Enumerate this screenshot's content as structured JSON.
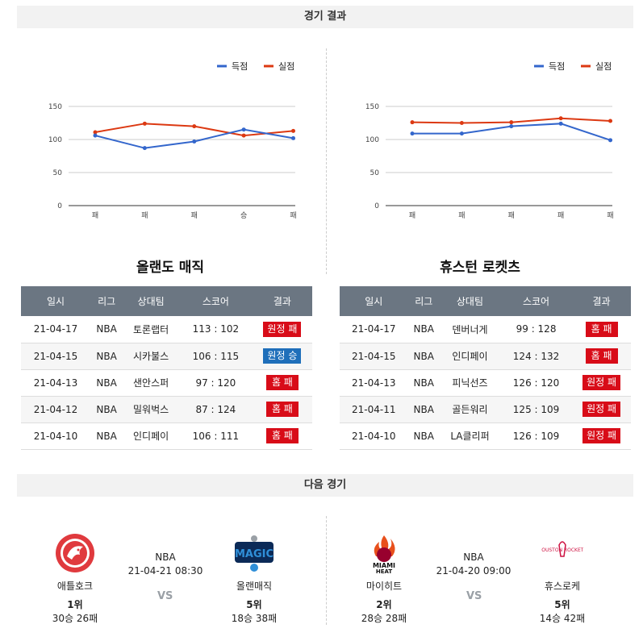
{
  "sections": {
    "results_title": "경기 결과",
    "next_title": "다음 경기"
  },
  "charts": [
    {
      "legend": {
        "scored": "득점",
        "conceded": "실점"
      },
      "colors": {
        "scored": "#3366cc",
        "conceded": "#dc3912"
      },
      "yticks": [
        "150",
        "100",
        "50",
        "0"
      ],
      "categories": [
        "패",
        "패",
        "패",
        "승",
        "패"
      ],
      "scored": [
        106,
        87,
        97,
        115,
        102
      ],
      "conceded": [
        111,
        124,
        120,
        106,
        113
      ]
    },
    {
      "legend": {
        "scored": "득점",
        "conceded": "실점"
      },
      "colors": {
        "scored": "#3366cc",
        "conceded": "#dc3912"
      },
      "yticks": [
        "150",
        "100",
        "50",
        "0"
      ],
      "categories": [
        "패",
        "패",
        "패",
        "패",
        "패"
      ],
      "scored": [
        109,
        109,
        120,
        124,
        99
      ],
      "conceded": [
        126,
        125,
        126,
        132,
        128
      ]
    }
  ],
  "chart_data": [
    {
      "type": "line",
      "categories": [
        "패",
        "패",
        "패",
        "승",
        "패"
      ],
      "ylim": [
        0,
        150
      ],
      "series": [
        {
          "name": "득점",
          "values": [
            106,
            87,
            97,
            115,
            102
          ]
        },
        {
          "name": "실점",
          "values": [
            111,
            124,
            120,
            106,
            113
          ]
        }
      ]
    },
    {
      "type": "line",
      "categories": [
        "패",
        "패",
        "패",
        "패",
        "패"
      ],
      "ylim": [
        0,
        150
      ],
      "series": [
        {
          "name": "득점",
          "values": [
            109,
            109,
            120,
            124,
            99
          ]
        },
        {
          "name": "실점",
          "values": [
            126,
            125,
            126,
            132,
            128
          ]
        }
      ]
    }
  ],
  "teams": {
    "left": {
      "name": "올랜도 매직"
    },
    "right": {
      "name": "휴스턴 로켓츠"
    }
  },
  "table_headers": [
    "일시",
    "리그",
    "상대팀",
    "스코어",
    "결과"
  ],
  "left_table": [
    {
      "date": "21-04-17",
      "league": "NBA",
      "opp": "토론랩터",
      "score": "113 : 102",
      "result": "원정 패",
      "kind": "loss"
    },
    {
      "date": "21-04-15",
      "league": "NBA",
      "opp": "시카불스",
      "score": "106 : 115",
      "result": "원정 승",
      "kind": "win"
    },
    {
      "date": "21-04-13",
      "league": "NBA",
      "opp": "샌안스퍼",
      "score": "97 : 120",
      "result": "홈 패",
      "kind": "loss"
    },
    {
      "date": "21-04-12",
      "league": "NBA",
      "opp": "밀워벅스",
      "score": "87 : 124",
      "result": "홈 패",
      "kind": "loss"
    },
    {
      "date": "21-04-10",
      "league": "NBA",
      "opp": "인디페이",
      "score": "106 : 111",
      "result": "홈 패",
      "kind": "loss"
    }
  ],
  "right_table": [
    {
      "date": "21-04-17",
      "league": "NBA",
      "opp": "덴버너게",
      "score": "99 : 128",
      "result": "홈 패",
      "kind": "loss"
    },
    {
      "date": "21-04-15",
      "league": "NBA",
      "opp": "인디페이",
      "score": "124 : 132",
      "result": "홈 패",
      "kind": "loss"
    },
    {
      "date": "21-04-13",
      "league": "NBA",
      "opp": "피닉선즈",
      "score": "126 : 120",
      "result": "원정 패",
      "kind": "loss"
    },
    {
      "date": "21-04-11",
      "league": "NBA",
      "opp": "골든워리",
      "score": "125 : 109",
      "result": "원정 패",
      "kind": "loss"
    },
    {
      "date": "21-04-10",
      "league": "NBA",
      "opp": "LA클리퍼",
      "score": "126 : 109",
      "result": "원정 패",
      "kind": "loss"
    }
  ],
  "next_games": [
    {
      "league": "NBA",
      "datetime": "21-04-21 08:30",
      "vs": "VS",
      "home": {
        "name": "애틀호크",
        "rank": "1위",
        "record": "30승 26패"
      },
      "away": {
        "name": "올랜매직",
        "rank": "5위",
        "record": "18승 38패"
      }
    },
    {
      "league": "NBA",
      "datetime": "21-04-20 09:00",
      "vs": "VS",
      "home": {
        "name": "마이히트",
        "rank": "2위",
        "record": "28승 28패"
      },
      "away": {
        "name": "휴스로케",
        "rank": "5위",
        "record": "14승 42패"
      }
    }
  ]
}
